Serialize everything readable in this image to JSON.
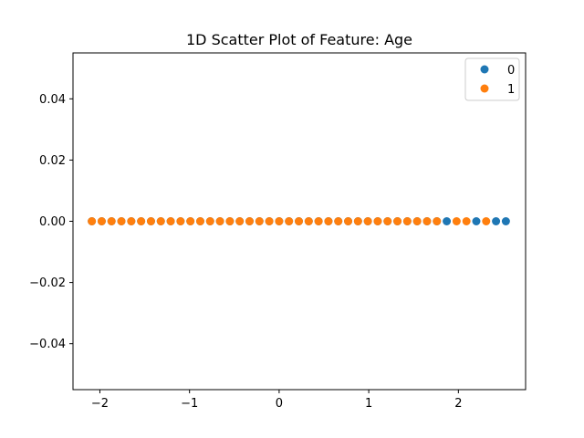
{
  "chart_data": {
    "type": "scatter",
    "title": "1D Scatter Plot of Feature: Age",
    "xlabel": "",
    "ylabel": "",
    "xlim": [
      -2.3,
      2.75
    ],
    "ylim": [
      -0.055,
      0.055
    ],
    "x_ticks": [
      -2,
      -1,
      0,
      1,
      2
    ],
    "x_tick_labels": [
      "−2",
      "−1",
      "0",
      "1",
      "2"
    ],
    "y_ticks": [
      0.04,
      0.02,
      0.0,
      -0.02,
      -0.04
    ],
    "y_tick_labels": [
      "0.04",
      "0.02",
      "0.00",
      "−0.02",
      "−0.04"
    ],
    "grid": false,
    "legend_position": "top-right",
    "series": [
      {
        "name": "0",
        "color": "#1f77b4",
        "x": [
          -2.09,
          -1.98,
          -1.87,
          -1.76,
          -1.65,
          -1.54,
          -1.43,
          -1.32,
          -1.21,
          -1.1,
          -0.99,
          -0.88,
          -0.77,
          -0.66,
          -0.55,
          -0.44,
          -0.33,
          -0.22,
          -0.11,
          0.0,
          0.11,
          0.22,
          0.33,
          0.44,
          0.55,
          0.66,
          0.77,
          0.88,
          0.99,
          1.1,
          1.21,
          1.32,
          1.43,
          1.54,
          1.65,
          1.76,
          1.87,
          2.2,
          2.42,
          2.53
        ],
        "y": [
          0,
          0,
          0,
          0,
          0,
          0,
          0,
          0,
          0,
          0,
          0,
          0,
          0,
          0,
          0,
          0,
          0,
          0,
          0,
          0,
          0,
          0,
          0,
          0,
          0,
          0,
          0,
          0,
          0,
          0,
          0,
          0,
          0,
          0,
          0,
          0,
          0,
          0,
          0,
          0
        ]
      },
      {
        "name": "1",
        "color": "#ff7f0e",
        "x": [
          -2.09,
          -1.98,
          -1.87,
          -1.76,
          -1.65,
          -1.54,
          -1.43,
          -1.32,
          -1.21,
          -1.1,
          -0.99,
          -0.88,
          -0.77,
          -0.66,
          -0.55,
          -0.44,
          -0.33,
          -0.22,
          -0.11,
          0.0,
          0.11,
          0.22,
          0.33,
          0.44,
          0.55,
          0.66,
          0.77,
          0.88,
          0.99,
          1.1,
          1.21,
          1.32,
          1.43,
          1.54,
          1.65,
          1.76,
          1.98,
          2.09,
          2.31
        ],
        "y": [
          0,
          0,
          0,
          0,
          0,
          0,
          0,
          0,
          0,
          0,
          0,
          0,
          0,
          0,
          0,
          0,
          0,
          0,
          0,
          0,
          0,
          0,
          0,
          0,
          0,
          0,
          0,
          0,
          0,
          0,
          0,
          0,
          0,
          0,
          0,
          0,
          0,
          0,
          0
        ]
      }
    ]
  }
}
